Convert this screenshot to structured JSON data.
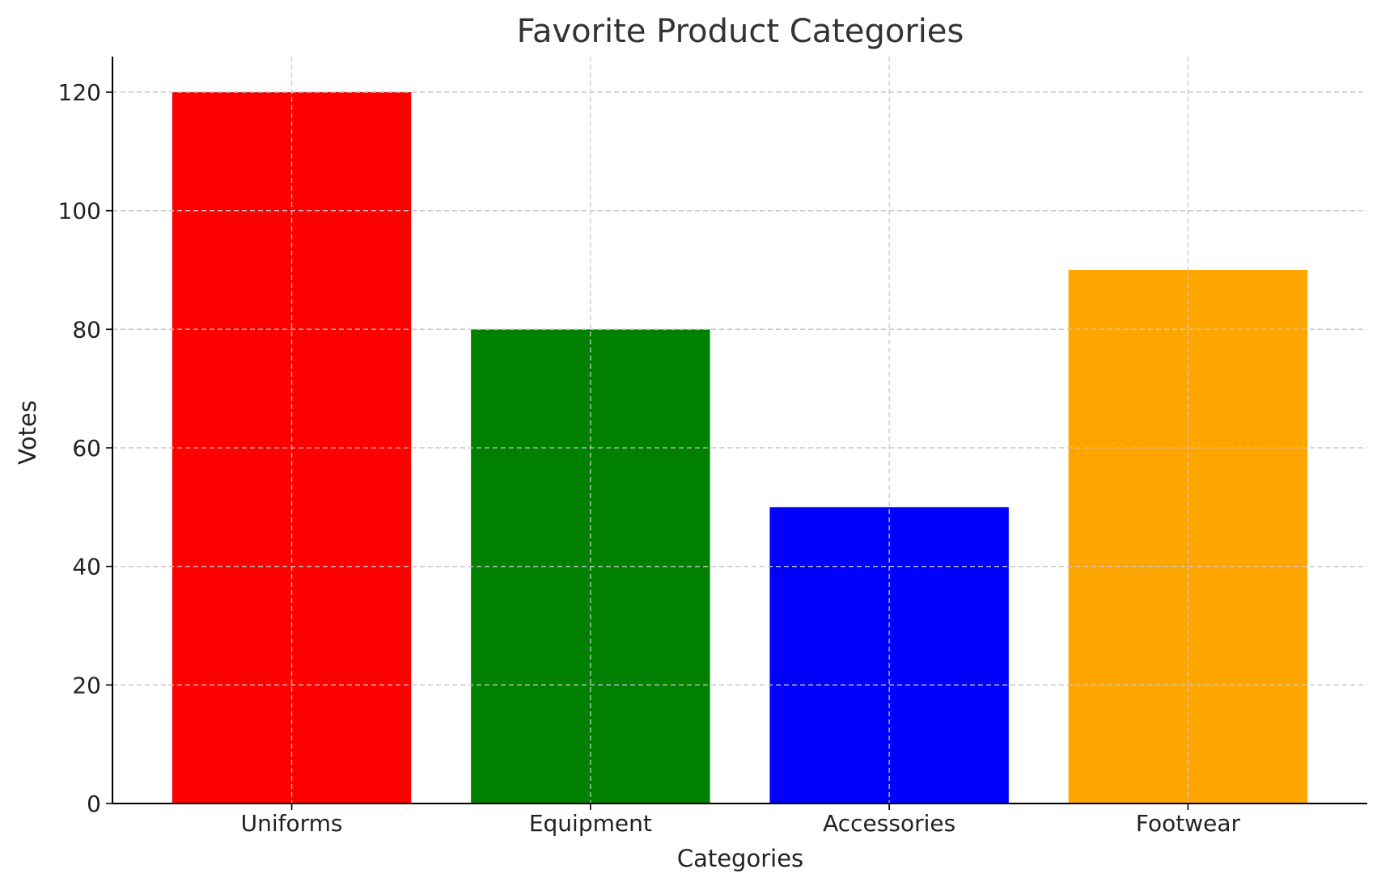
{
  "chart_data": {
    "type": "bar",
    "title": "Favorite Product Categories",
    "xlabel": "Categories",
    "ylabel": "Votes",
    "categories": [
      "Uniforms",
      "Equipment",
      "Accessories",
      "Footwear"
    ],
    "values": [
      120,
      80,
      50,
      90
    ],
    "colors": [
      "#ff0000",
      "#008000",
      "#0000ff",
      "#ffa500"
    ],
    "ylim": [
      0,
      126
    ],
    "yticks": [
      0,
      20,
      40,
      60,
      80,
      100,
      120
    ],
    "grid": true,
    "legend": false
  }
}
